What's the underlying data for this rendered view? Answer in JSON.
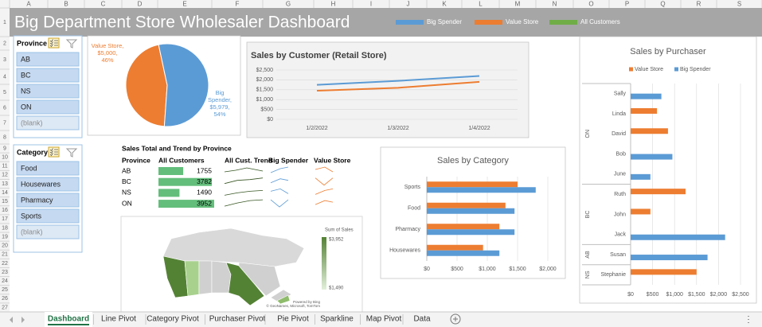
{
  "sheet": {
    "columns": [
      "A",
      "B",
      "C",
      "D",
      "E",
      "F",
      "G",
      "H",
      "I",
      "J",
      "K",
      "L",
      "M",
      "N",
      "O",
      "P",
      "Q",
      "R",
      "S"
    ],
    "rows": [
      "1",
      "2",
      "3",
      "4",
      "5",
      "6",
      "7",
      "8",
      "9",
      "10",
      "11",
      "12",
      "13",
      "14",
      "15",
      "16",
      "17",
      "18",
      "19",
      "20",
      "21",
      "22",
      "23",
      "24",
      "25",
      "26",
      "27"
    ]
  },
  "header": {
    "title": "Big Department Store Wholesaler Dashboard",
    "legend": [
      {
        "name": "Big Spender",
        "color": "#5b9bd5"
      },
      {
        "name": "Value Store",
        "color": "#ed7d31"
      },
      {
        "name": "All Customers",
        "color": "#70ad47"
      }
    ]
  },
  "slicers": [
    {
      "title": "Province",
      "items": [
        "AB",
        "BC",
        "NS",
        "ON",
        "(blank)"
      ]
    },
    {
      "title": "Category",
      "items": [
        "Food",
        "Housewares",
        "Pharmacy",
        "Sports",
        "(blank)"
      ]
    }
  ],
  "chart_data": [
    {
      "type": "pie",
      "values": [
        5000,
        5979
      ],
      "value_labels": [
        "Value Store, $5,000, 46%",
        "Big Spender, $5,979, 54%"
      ],
      "colors": [
        "#ed7d31",
        "#5b9bd5"
      ]
    },
    {
      "type": "line",
      "title": "Sales by Customer (Retail Store)",
      "x": [
        "1/2/2022",
        "1/3/2022",
        "1/4/2022"
      ],
      "series": [
        {
          "color": "#5b9bd5",
          "values": [
            1750,
            1950,
            2200
          ]
        },
        {
          "color": "#ed7d31",
          "values": [
            1450,
            1600,
            1900
          ]
        }
      ],
      "ylim": [
        0,
        2500
      ],
      "yticks": [
        {
          "value": 0,
          "label": "$0"
        },
        {
          "value": 500,
          "label": "$500"
        },
        {
          "value": 1000,
          "label": "$1,000"
        },
        {
          "value": 1500,
          "label": "$1,500"
        },
        {
          "value": 2000,
          "label": "$2,000"
        },
        {
          "value": 2500,
          "label": "$2,500"
        }
      ],
      "grid": true
    },
    {
      "type": "hbar",
      "title": "Sales by Category",
      "categories": [
        "Sports",
        "Food",
        "Pharmacy",
        "Housewares"
      ],
      "series": [
        {
          "color": "#ed7d31",
          "values": [
            1500,
            1300,
            1200,
            930
          ]
        },
        {
          "color": "#5b9bd5",
          "values": [
            1800,
            1450,
            1450,
            1200
          ]
        }
      ],
      "xlim": [
        0,
        2000
      ],
      "xticks": [
        {
          "value": 0,
          "label": "$0"
        },
        {
          "value": 500,
          "label": "$500"
        },
        {
          "value": 1000,
          "label": "$1,000"
        },
        {
          "value": 1500,
          "label": "$1,500"
        },
        {
          "value": 2000,
          "label": "$2,000"
        }
      ],
      "grid": true
    },
    {
      "type": "hbar",
      "title": "Sales by Purchaser",
      "groups": [
        {
          "label": "ON",
          "categories": [
            "Sally",
            "Linda",
            "David",
            "Bob",
            "June"
          ]
        },
        {
          "label": "BC",
          "categories": [
            "Ruth",
            "John",
            "Jack"
          ]
        },
        {
          "label": "AB",
          "categories": [
            "Susan"
          ]
        },
        {
          "label": "NS",
          "categories": [
            "Stephanie"
          ]
        }
      ],
      "series": [
        {
          "name": "Value Store",
          "color": "#ed7d31",
          "values": [
            null,
            600,
            850,
            null,
            null,
            1250,
            450,
            null,
            null,
            1500
          ]
        },
        {
          "name": "Big Spender",
          "color": "#5b9bd5",
          "values": [
            700,
            null,
            null,
            950,
            450,
            null,
            null,
            2150,
            1750,
            null
          ]
        }
      ],
      "xlim": [
        0,
        2500
      ],
      "xticks": [
        {
          "value": 0,
          "label": "$0"
        },
        {
          "value": 500,
          "label": "$500"
        },
        {
          "value": 1000,
          "label": "$1,000"
        },
        {
          "value": 1500,
          "label": "$1,500"
        },
        {
          "value": 2000,
          "label": "$2,000"
        },
        {
          "value": 2500,
          "label": "$2,500"
        }
      ],
      "grid": true,
      "legend": "top"
    }
  ],
  "table": {
    "title": "Sales Total and Trend by Province",
    "headers": [
      "Province",
      "All Customers",
      "All Cust. Trend",
      "Big Spender",
      "Value Store"
    ],
    "rows": [
      [
        "AB",
        1755
      ],
      [
        "BC",
        3782
      ],
      [
        "NS",
        1490
      ],
      [
        "ON",
        3952
      ]
    ],
    "bar_color": "#63be7b"
  },
  "map": {
    "title": "Sum of Sales",
    "legend_labels": [
      "$3,952",
      "$1,490"
    ],
    "credits": [
      "Powered by Bing",
      "© GeoNames, Microsoft, TomTom"
    ]
  },
  "tabs": {
    "items": [
      "Dashboard",
      "Line Pivot",
      "Category Pivot",
      "Purchaser Pivot",
      "Pie Pivot",
      "Sparkline",
      "Map Pivot",
      "Data"
    ],
    "active": 0
  }
}
